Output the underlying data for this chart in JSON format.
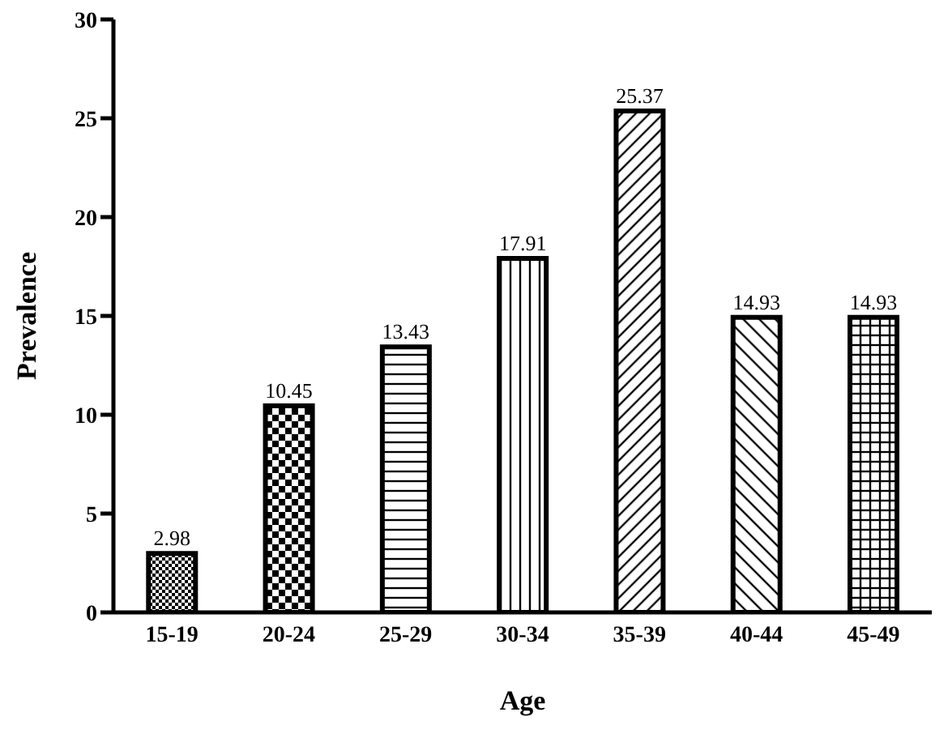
{
  "chart_data": {
    "type": "bar",
    "xlabel": "Age",
    "ylabel": "Prevalence",
    "categories": [
      "15-19",
      "20-24",
      "25-29",
      "30-34",
      "35-39",
      "40-44",
      "45-49"
    ],
    "values": [
      2.98,
      10.45,
      13.43,
      17.91,
      25.37,
      14.93,
      14.93
    ],
    "color": "#000000",
    "ylim": [
      0,
      30
    ],
    "yticks": [
      0,
      5,
      10,
      15,
      20,
      25,
      30
    ],
    "grid": false,
    "legend": false,
    "data_labels": true
  }
}
